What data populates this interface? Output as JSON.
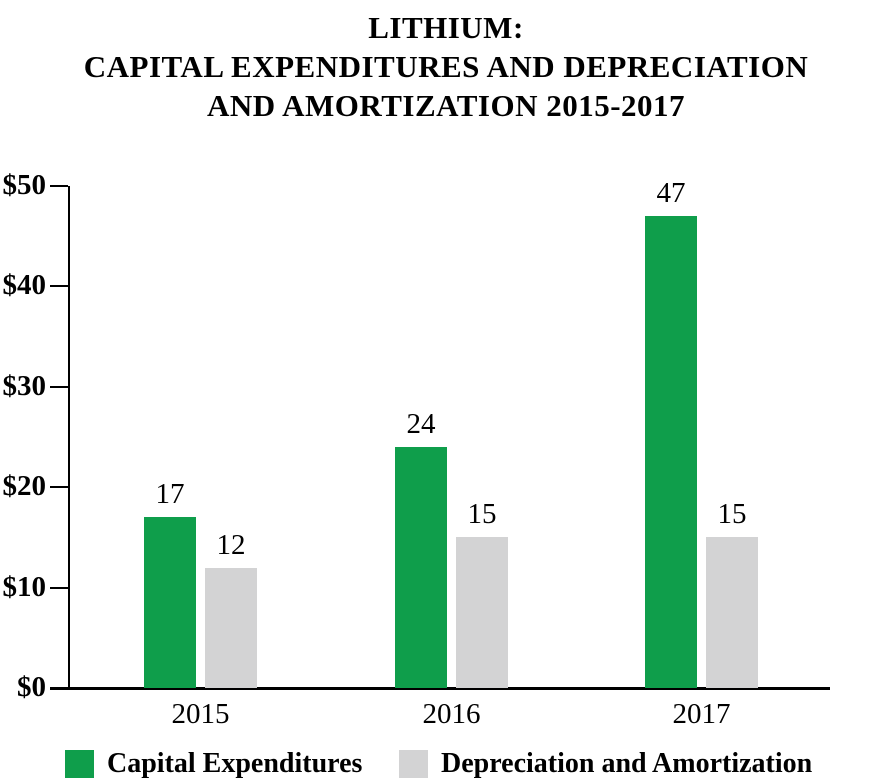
{
  "title": {
    "line1": "LITHIUM:",
    "line2": "CAPITAL EXPENDITURES AND DEPRECIATION",
    "line3": "AND AMORTIZATION 2015-2017"
  },
  "chart_data": {
    "type": "bar",
    "title": "LITHIUM: CAPITAL EXPENDITURES AND DEPRECIATION AND AMORTIZATION 2015-2017",
    "categories": [
      "2015",
      "2016",
      "2017"
    ],
    "series": [
      {
        "name": "Capital Expenditures",
        "color": "#0f9e4b",
        "values": [
          17,
          24,
          47
        ]
      },
      {
        "name": "Depreciation and Amortization",
        "color": "#d3d3d4",
        "values": [
          12,
          15,
          15
        ]
      }
    ],
    "xlabel": "",
    "ylabel": "",
    "ylim": [
      0,
      50
    ],
    "y_tick_values": [
      0,
      10,
      20,
      30,
      40,
      50
    ],
    "y_ticks": [
      "$0",
      "$10",
      "$20",
      "$30",
      "$40",
      "$50"
    ],
    "grid": false,
    "bar_value_labels": true,
    "legend_position": "bottom",
    "axis_color": "#000000",
    "text_color": "#000000",
    "background_color": "#ffffff"
  }
}
